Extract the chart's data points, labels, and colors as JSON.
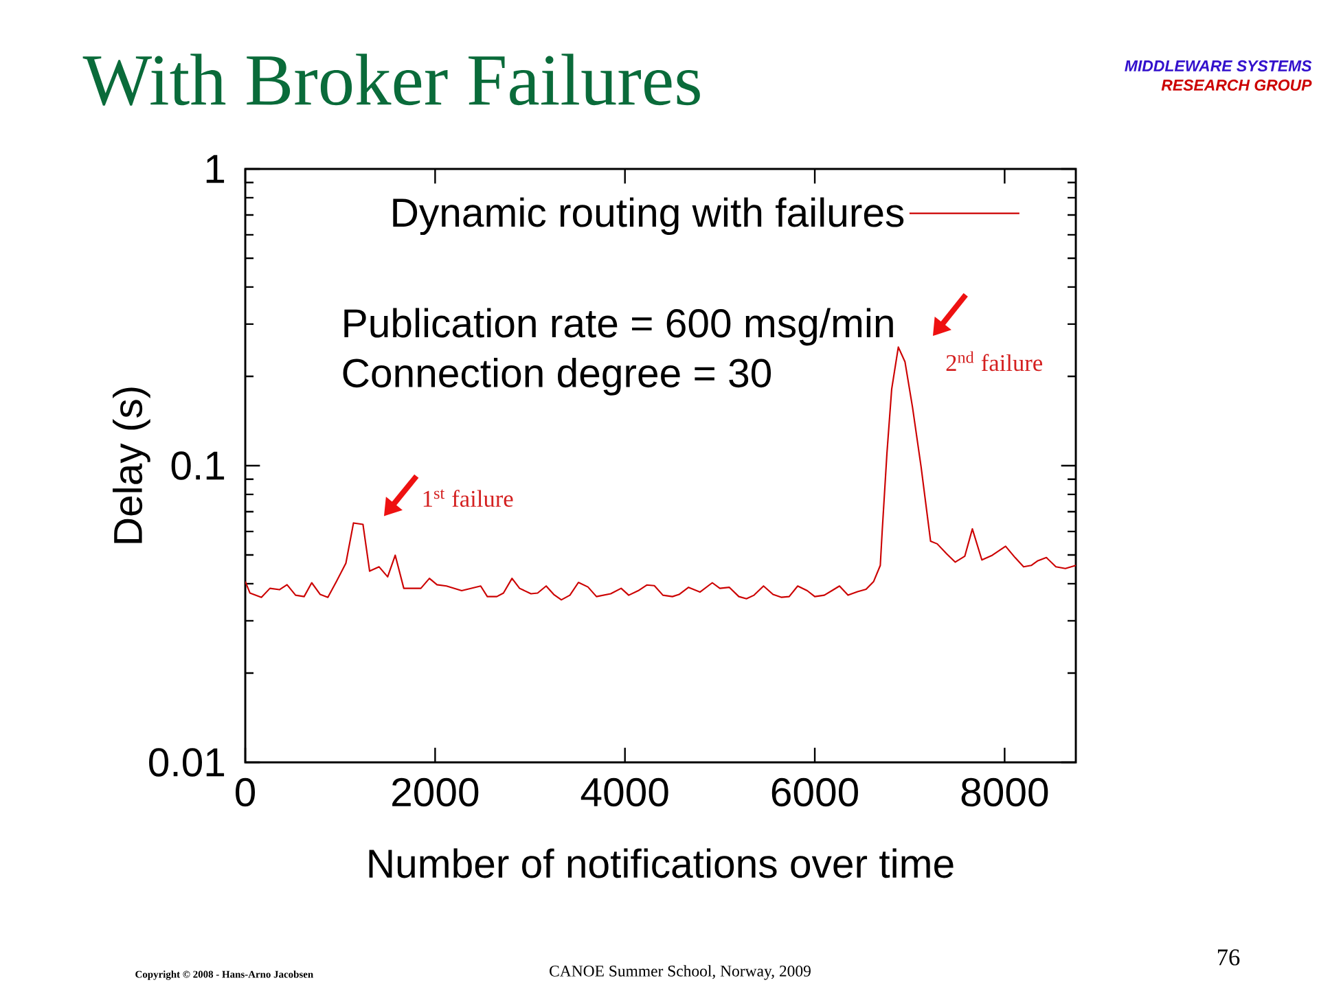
{
  "chart_data": {
    "type": "line",
    "title": "With Broker Failures",
    "xlabel": "Number of notifications over time",
    "ylabel": "Delay (s)",
    "x": [
      0,
      50,
      170,
      260,
      360,
      440,
      530,
      620,
      700,
      790,
      870,
      960,
      1060,
      1140,
      1240,
      1310,
      1410,
      1500,
      1580,
      1670,
      1850,
      1940,
      2020,
      2120,
      2280,
      2480,
      2550,
      2650,
      2720,
      2810,
      2890,
      3010,
      3080,
      3170,
      3250,
      3330,
      3420,
      3510,
      3610,
      3700,
      3850,
      3960,
      4040,
      4140,
      4230,
      4310,
      4400,
      4500,
      4570,
      4670,
      4790,
      4920,
      5000,
      5100,
      5200,
      5280,
      5360,
      5460,
      5560,
      5650,
      5730,
      5820,
      5920,
      6000,
      6100,
      6180,
      6260,
      6350,
      6450,
      6540,
      6620,
      6690,
      6710,
      6760,
      6810,
      6880,
      6950,
      7030,
      7120,
      7220,
      7290,
      7390,
      7480,
      7580,
      7660,
      7760,
      7870,
      8010,
      8110,
      8200,
      8280,
      8350,
      8440,
      8540,
      8640,
      8750
    ],
    "series": [
      {
        "name": "Dynamic routing with failures",
        "color": "#cc0000",
        "values": [
          0.0407,
          0.0372,
          0.036,
          0.0386,
          0.0382,
          0.0397,
          0.0366,
          0.0362,
          0.0403,
          0.0368,
          0.036,
          0.0407,
          0.0469,
          0.0641,
          0.0634,
          0.0441,
          0.0456,
          0.0422,
          0.0499,
          0.0386,
          0.0386,
          0.0417,
          0.0397,
          0.0393,
          0.0379,
          0.0393,
          0.0362,
          0.0362,
          0.0372,
          0.0417,
          0.0386,
          0.037,
          0.0372,
          0.0393,
          0.0368,
          0.0353,
          0.0366,
          0.0404,
          0.039,
          0.0362,
          0.037,
          0.0386,
          0.0366,
          0.0379,
          0.0396,
          0.0394,
          0.0366,
          0.0362,
          0.0368,
          0.0389,
          0.0375,
          0.0403,
          0.0386,
          0.0389,
          0.0362,
          0.0356,
          0.0366,
          0.0393,
          0.0368,
          0.036,
          0.0362,
          0.0393,
          0.0379,
          0.0362,
          0.0366,
          0.0379,
          0.0393,
          0.0366,
          0.0376,
          0.0383,
          0.0407,
          0.0461,
          0.0601,
          0.11,
          0.181,
          0.251,
          0.224,
          0.157,
          0.099,
          0.0556,
          0.0545,
          0.0504,
          0.0473,
          0.0495,
          0.0612,
          0.0481,
          0.0499,
          0.0535,
          0.049,
          0.0456,
          0.0461,
          0.0478,
          0.049,
          0.0456,
          0.045,
          0.0461
        ]
      }
    ],
    "xlim": [
      0,
      8750
    ],
    "ylim": [
      0.01,
      1
    ],
    "xticks": [
      0,
      2000,
      4000,
      6000,
      8000
    ],
    "yticks": [
      0.01,
      0.1,
      1
    ],
    "log": "y",
    "legend": "top right",
    "annotations": [
      "Publication rate = 600 msg/min",
      "Connection degree = 30",
      {
        "text": "1$^{st}$ failure",
        "x": 1190,
        "y": 0.064
      },
      {
        "text": "2$^{nd}$ failure",
        "x": 6880,
        "y": 0.251
      },
      "MIDDLEWARE SYSTEMS",
      "RESEARCH GROUP",
      "Copyright © 2008 - Hans-Arno Jacobsen",
      "CANOE Summer School, Norway, 2009",
      "76"
    ]
  }
}
